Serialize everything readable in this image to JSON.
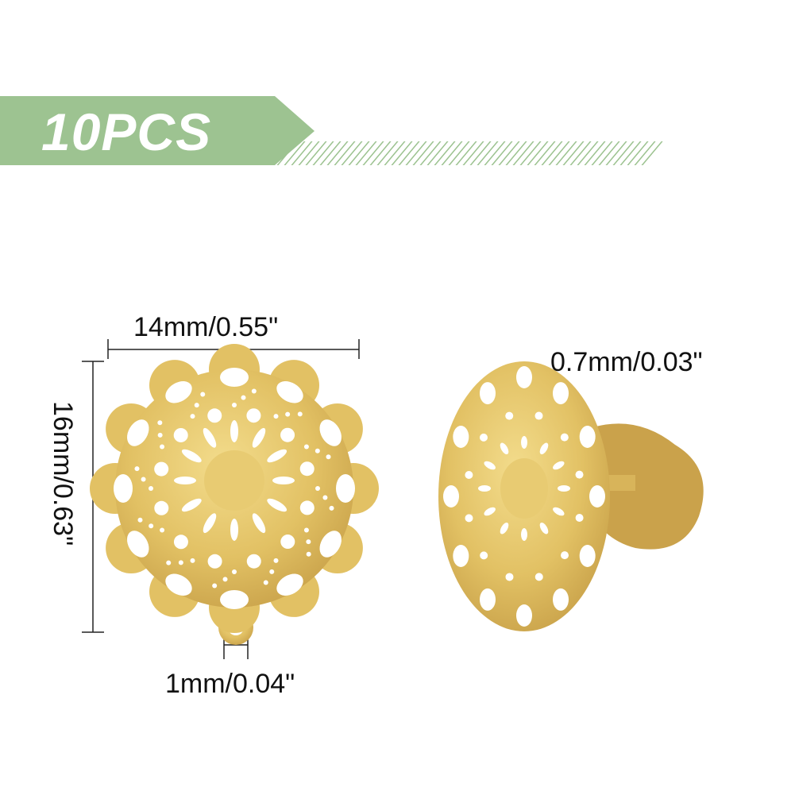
{
  "badge": {
    "text": "10PCS",
    "color": "#9dc391"
  },
  "dimensions": {
    "width": "14mm/0.55\"",
    "height": "16mm/0.63\"",
    "hole": "1mm/0.04\"",
    "thickness": "0.7mm/0.03\""
  },
  "colors": {
    "gold": "#e2c164",
    "gold_dark": "#b8923a"
  }
}
